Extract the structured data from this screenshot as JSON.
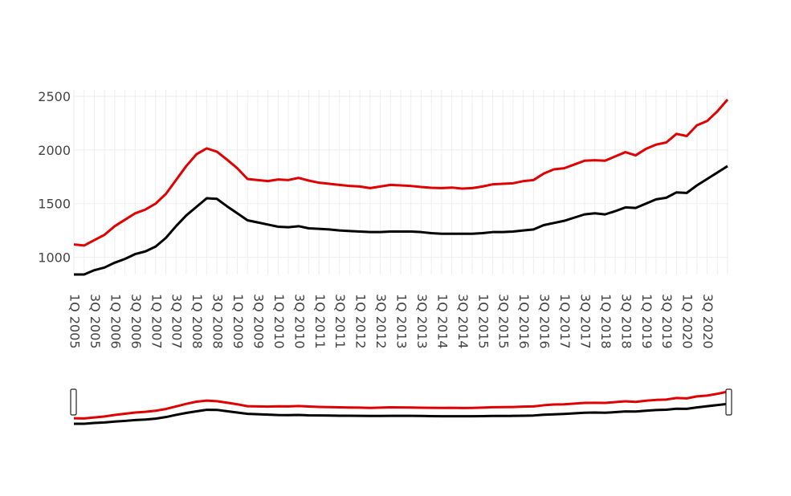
{
  "chart_data": {
    "type": "line",
    "title": "",
    "xlabel": "",
    "ylabel": "",
    "x": [
      "1Q 2005",
      "2Q 2005",
      "3Q 2005",
      "4Q 2005",
      "1Q 2006",
      "2Q 2006",
      "3Q 2006",
      "4Q 2006",
      "1Q 2007",
      "2Q 2007",
      "3Q 2007",
      "4Q 2007",
      "1Q 2008",
      "2Q 2008",
      "3Q 2008",
      "4Q 2008",
      "1Q 2009",
      "2Q 2009",
      "3Q 2009",
      "4Q 2009",
      "1Q 2010",
      "2Q 2010",
      "3Q 2010",
      "4Q 2010",
      "1Q 2011",
      "2Q 2011",
      "3Q 2011",
      "4Q 2011",
      "1Q 2012",
      "2Q 2012",
      "3Q 2012",
      "4Q 2012",
      "1Q 2013",
      "2Q 2013",
      "3Q 2013",
      "4Q 2013",
      "1Q 2014",
      "2Q 2014",
      "3Q 2014",
      "4Q 2014",
      "1Q 2015",
      "2Q 2015",
      "3Q 2015",
      "4Q 2015",
      "1Q 2016",
      "2Q 2016",
      "3Q 2016",
      "4Q 2016",
      "1Q 2017",
      "2Q 2017",
      "3Q 2017",
      "4Q 2017",
      "1Q 2018",
      "2Q 2018",
      "3Q 2018",
      "4Q 2018",
      "1Q 2019",
      "2Q 2019",
      "3Q 2019",
      "4Q 2019",
      "1Q 2020",
      "2Q 2020",
      "3Q 2020",
      "4Q 2020",
      "1Q 2021"
    ],
    "x_tick_labels": [
      "1Q 2005",
      "3Q 2005",
      "1Q 2006",
      "3Q 2006",
      "1Q 2007",
      "3Q 2007",
      "1Q 2008",
      "3Q 2008",
      "1Q 2009",
      "3Q 2009",
      "1Q 2010",
      "3Q 2010",
      "1Q 2011",
      "3Q 2011",
      "1Q 2012",
      "3Q 2012",
      "1Q 2013",
      "3Q 2013",
      "1Q 2014",
      "3Q 2014",
      "1Q 2015",
      "3Q 2015",
      "1Q 2016",
      "3Q 2016",
      "1Q 2017",
      "3Q 2017",
      "1Q 2018",
      "3Q 2018",
      "1Q 2019",
      "3Q 2019",
      "1Q 2020",
      "3Q 2020"
    ],
    "y_ticks": [
      1000,
      1500,
      2000,
      2500
    ],
    "ylim": [
      840,
      2560
    ],
    "grid": true,
    "legend": "none",
    "range_slider": true,
    "series": [
      {
        "color": "#e00000",
        "values": [
          1120,
          1110,
          1160,
          1210,
          1290,
          1350,
          1410,
          1445,
          1500,
          1590,
          1720,
          1850,
          1960,
          2015,
          1985,
          1910,
          1830,
          1730,
          1720,
          1710,
          1725,
          1720,
          1740,
          1715,
          1695,
          1685,
          1675,
          1665,
          1660,
          1645,
          1660,
          1675,
          1670,
          1665,
          1655,
          1648,
          1645,
          1650,
          1640,
          1645,
          1660,
          1680,
          1685,
          1690,
          1710,
          1720,
          1780,
          1820,
          1830,
          1865,
          1900,
          1905,
          1900,
          1940,
          1980,
          1950,
          2010,
          2050,
          2070,
          2150,
          2130,
          2230,
          2270,
          2360,
          2470
        ]
      },
      {
        "color": "#000000",
        "values": [
          840,
          840,
          880,
          905,
          950,
          985,
          1030,
          1055,
          1100,
          1180,
          1290,
          1390,
          1470,
          1550,
          1545,
          1475,
          1410,
          1345,
          1325,
          1305,
          1285,
          1280,
          1290,
          1270,
          1265,
          1260,
          1250,
          1245,
          1240,
          1235,
          1235,
          1240,
          1240,
          1240,
          1235,
          1225,
          1220,
          1220,
          1220,
          1220,
          1225,
          1235,
          1235,
          1240,
          1250,
          1260,
          1300,
          1320,
          1340,
          1370,
          1400,
          1410,
          1400,
          1430,
          1465,
          1460,
          1500,
          1540,
          1555,
          1605,
          1600,
          1670,
          1730,
          1790,
          1850
        ]
      }
    ]
  }
}
